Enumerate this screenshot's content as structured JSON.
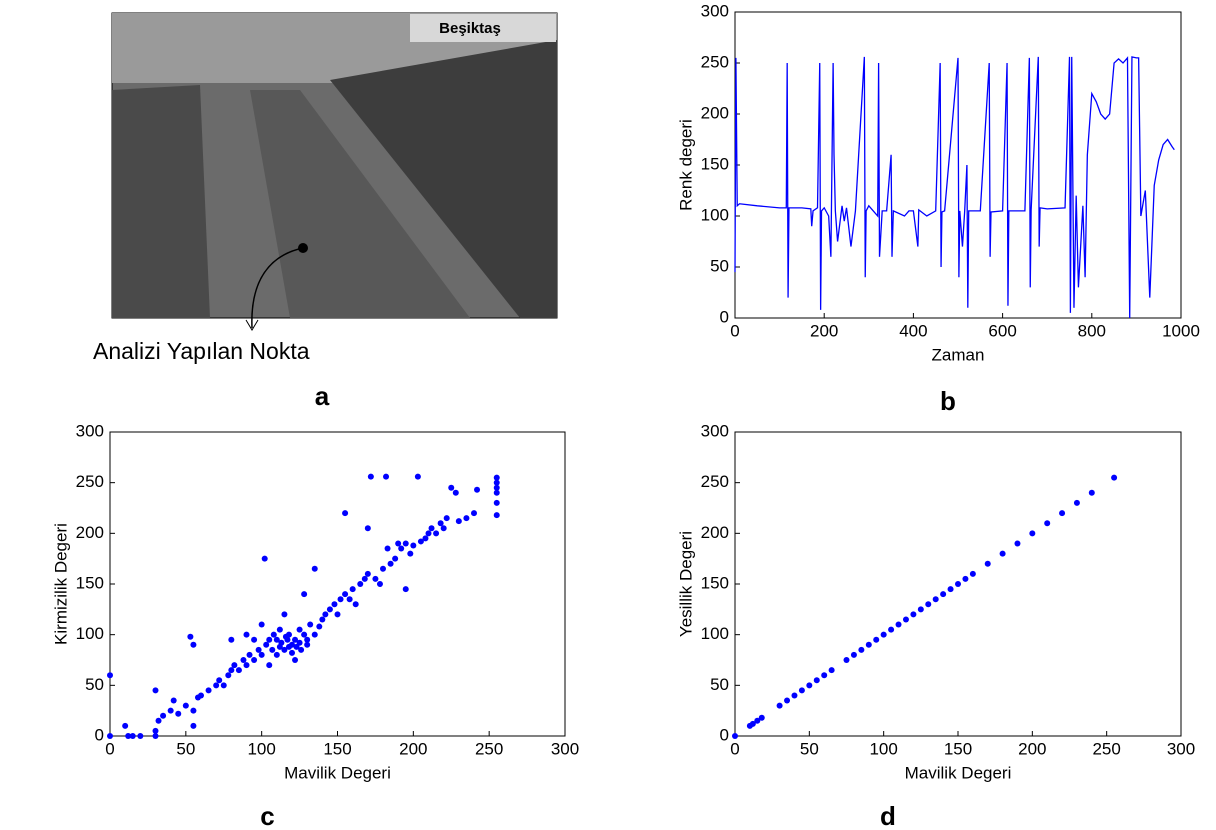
{
  "photo": {
    "overlay_label": "Beşiktaş",
    "annotation": "Analizi Yapılan Nokta",
    "panel_label": "a"
  },
  "chart_data": [
    {
      "type": "line",
      "panel_label": "b",
      "x_label": "Zaman",
      "y_label": "Renk degeri",
      "color": "#0000ff",
      "xlim": [
        0,
        1000
      ],
      "ylim": [
        0,
        300
      ],
      "xticks": [
        0,
        200,
        400,
        600,
        800,
        1000
      ],
      "yticks": [
        0,
        50,
        100,
        150,
        200,
        250,
        300
      ],
      "x": [
        0,
        2,
        5,
        10,
        50,
        100,
        115,
        117,
        119,
        121,
        150,
        170,
        172,
        175,
        185,
        190,
        192,
        194,
        200,
        210,
        215,
        220,
        222,
        225,
        230,
        240,
        245,
        250,
        260,
        270,
        290,
        292,
        294,
        300,
        320,
        322,
        324,
        330,
        340,
        350,
        352,
        355,
        380,
        390,
        400,
        410,
        412,
        430,
        450,
        460,
        462,
        464,
        470,
        500,
        502,
        504,
        510,
        515,
        520,
        522,
        524,
        550,
        570,
        572,
        574,
        600,
        610,
        612,
        614,
        650,
        660,
        662,
        664,
        680,
        682,
        684,
        700,
        740,
        750,
        752,
        755,
        760,
        765,
        770,
        780,
        785,
        790,
        800,
        810,
        820,
        830,
        840,
        850,
        860,
        870,
        880,
        885,
        890,
        900,
        905,
        910,
        920,
        930,
        940,
        950,
        960,
        970,
        980,
        985
      ],
      "series": [
        {
          "name": "Renk degeri",
          "color": "#0000ff",
          "values": [
            45,
            255,
            110,
            112,
            110,
            108,
            108,
            250,
            20,
            108,
            108,
            107,
            90,
            105,
            108,
            250,
            8,
            105,
            108,
            100,
            60,
            250,
            160,
            105,
            75,
            110,
            95,
            108,
            70,
            105,
            256,
            40,
            105,
            110,
            100,
            250,
            60,
            105,
            105,
            160,
            60,
            105,
            100,
            105,
            105,
            70,
            106,
            100,
            105,
            250,
            50,
            104,
            105,
            255,
            40,
            105,
            70,
            105,
            150,
            10,
            105,
            105,
            250,
            60,
            104,
            105,
            250,
            12,
            105,
            105,
            255,
            30,
            106,
            256,
            70,
            108,
            107,
            108,
            256,
            5,
            256,
            10,
            120,
            30,
            110,
            40,
            160,
            220,
            212,
            200,
            195,
            200,
            250,
            254,
            250,
            255,
            0,
            256,
            255,
            255,
            100,
            125,
            20,
            130,
            155,
            170,
            175,
            168,
            165
          ]
        }
      ]
    },
    {
      "type": "scatter",
      "panel_label": "c",
      "x_label": "Mavilik Degeri",
      "y_label": "Kirmizilik Degeri",
      "color": "#0000ff",
      "xlim": [
        0,
        300
      ],
      "ylim": [
        0,
        300
      ],
      "xticks": [
        0,
        50,
        100,
        150,
        200,
        250,
        300
      ],
      "yticks": [
        0,
        50,
        100,
        150,
        200,
        250,
        300
      ],
      "x": [
        0,
        0,
        10,
        12,
        15,
        20,
        30,
        30,
        30,
        32,
        35,
        40,
        42,
        45,
        50,
        53,
        55,
        55,
        55,
        58,
        60,
        65,
        70,
        72,
        75,
        78,
        80,
        80,
        82,
        85,
        88,
        90,
        90,
        92,
        95,
        95,
        98,
        100,
        100,
        102,
        103,
        105,
        105,
        107,
        108,
        110,
        110,
        112,
        112,
        113,
        115,
        115,
        116,
        117,
        118,
        118,
        120,
        120,
        122,
        122,
        123,
        125,
        125,
        126,
        128,
        128,
        130,
        130,
        132,
        135,
        135,
        138,
        140,
        142,
        145,
        148,
        150,
        152,
        155,
        155,
        158,
        160,
        162,
        165,
        168,
        170,
        170,
        172,
        175,
        178,
        180,
        182,
        183,
        185,
        188,
        190,
        192,
        195,
        195,
        198,
        200,
        203,
        205,
        208,
        210,
        212,
        215,
        218,
        220,
        222,
        225,
        228,
        230,
        235,
        240,
        242,
        255,
        255,
        255,
        255,
        255,
        255
      ],
      "values": [
        60,
        0,
        10,
        0,
        0,
        0,
        0,
        5,
        45,
        15,
        20,
        25,
        35,
        22,
        30,
        98,
        90,
        10,
        25,
        38,
        40,
        45,
        50,
        55,
        50,
        60,
        95,
        65,
        70,
        65,
        75,
        100,
        70,
        80,
        95,
        75,
        85,
        110,
        80,
        175,
        90,
        70,
        95,
        85,
        100,
        80,
        95,
        88,
        105,
        92,
        85,
        120,
        98,
        95,
        88,
        100,
        90,
        82,
        95,
        75,
        88,
        92,
        105,
        85,
        140,
        100,
        95,
        90,
        110,
        100,
        165,
        108,
        115,
        120,
        125,
        130,
        120,
        135,
        220,
        140,
        135,
        145,
        130,
        150,
        155,
        160,
        205,
        256,
        155,
        150,
        165,
        256,
        185,
        170,
        175,
        190,
        185,
        190,
        145,
        180,
        188,
        256,
        192,
        195,
        200,
        205,
        200,
        210,
        205,
        215,
        245,
        240,
        212,
        215,
        220,
        243,
        218,
        230,
        240,
        245,
        250,
        255
      ]
    },
    {
      "type": "scatter",
      "panel_label": "d",
      "x_label": "Mavilik Degeri",
      "y_label": "Yesillik Degeri",
      "color": "#0000ff",
      "xlim": [
        0,
        300
      ],
      "ylim": [
        0,
        300
      ],
      "xticks": [
        0,
        50,
        100,
        150,
        200,
        250,
        300
      ],
      "yticks": [
        0,
        50,
        100,
        150,
        200,
        250,
        300
      ],
      "x": [
        0,
        10,
        12,
        15,
        18,
        30,
        35,
        40,
        45,
        50,
        55,
        60,
        65,
        75,
        80,
        85,
        90,
        95,
        100,
        105,
        110,
        115,
        120,
        125,
        130,
        135,
        140,
        145,
        150,
        155,
        160,
        170,
        180,
        190,
        200,
        210,
        220,
        230,
        240,
        255
      ],
      "values": [
        0,
        10,
        12,
        15,
        18,
        30,
        35,
        40,
        45,
        50,
        55,
        60,
        65,
        75,
        80,
        85,
        90,
        95,
        100,
        105,
        110,
        115,
        120,
        125,
        130,
        135,
        140,
        145,
        150,
        155,
        160,
        170,
        180,
        190,
        200,
        210,
        220,
        230,
        240,
        255
      ]
    }
  ]
}
